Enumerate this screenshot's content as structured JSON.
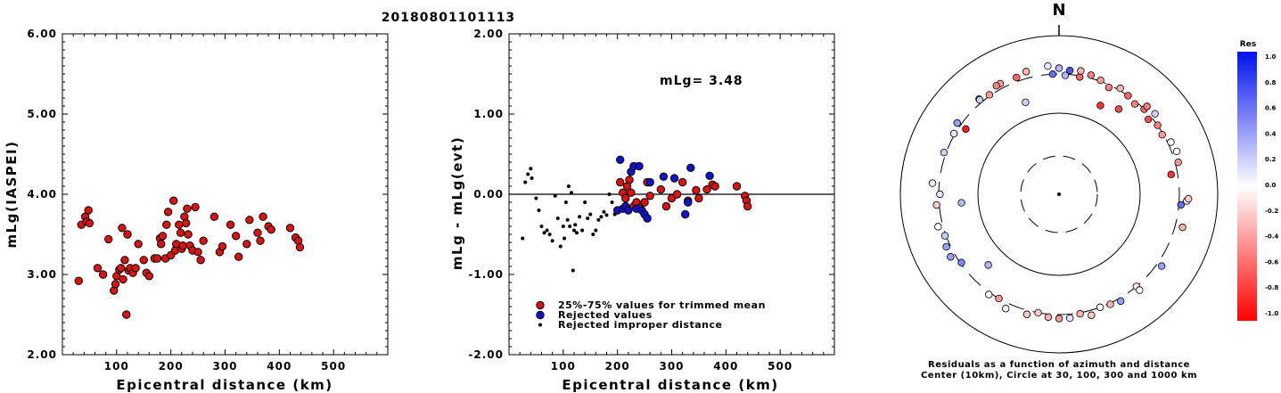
{
  "title": "20180801101113",
  "chart_data": [
    {
      "type": "scatter",
      "ylabel": "mLg(IASPEI)",
      "xlabel": "Epicentral distance (km)",
      "xlim": [
        0,
        600
      ],
      "ylim": [
        2.0,
        6.0
      ],
      "x_ticks": [
        "100",
        "200",
        "300",
        "400",
        "500"
      ],
      "y_ticks": [
        "2.00",
        "3.00",
        "4.00",
        "5.00",
        "6.00"
      ],
      "marker_color": "#dd1111",
      "points": [
        [
          30,
          2.92
        ],
        [
          35,
          3.62
        ],
        [
          42,
          3.72
        ],
        [
          45,
          3.66
        ],
        [
          48,
          3.8
        ],
        [
          50,
          3.64
        ],
        [
          65,
          3.08
        ],
        [
          75,
          3.0
        ],
        [
          85,
          3.44
        ],
        [
          95,
          2.8
        ],
        [
          98,
          2.88
        ],
        [
          100,
          2.98
        ],
        [
          105,
          3.06
        ],
        [
          108,
          3.08
        ],
        [
          110,
          3.58
        ],
        [
          112,
          2.94
        ],
        [
          115,
          3.18
        ],
        [
          118,
          2.5
        ],
        [
          120,
          3.5
        ],
        [
          122,
          3.05
        ],
        [
          125,
          3.08
        ],
        [
          130,
          3.02
        ],
        [
          135,
          3.08
        ],
        [
          140,
          3.38
        ],
        [
          150,
          3.18
        ],
        [
          155,
          3.02
        ],
        [
          160,
          2.98
        ],
        [
          170,
          3.2
        ],
        [
          175,
          3.2
        ],
        [
          180,
          3.45
        ],
        [
          182,
          3.38
        ],
        [
          185,
          3.48
        ],
        [
          190,
          3.2
        ],
        [
          192,
          3.62
        ],
        [
          195,
          3.78
        ],
        [
          200,
          3.24
        ],
        [
          205,
          3.92
        ],
        [
          208,
          3.3
        ],
        [
          210,
          3.38
        ],
        [
          215,
          3.62
        ],
        [
          218,
          3.52
        ],
        [
          220,
          3.32
        ],
        [
          222,
          3.36
        ],
        [
          225,
          3.72
        ],
        [
          228,
          3.64
        ],
        [
          230,
          3.82
        ],
        [
          232,
          3.5
        ],
        [
          235,
          3.36
        ],
        [
          240,
          3.3
        ],
        [
          245,
          3.84
        ],
        [
          250,
          3.28
        ],
        [
          255,
          3.18
        ],
        [
          260,
          3.42
        ],
        [
          280,
          3.72
        ],
        [
          290,
          3.28
        ],
        [
          295,
          3.35
        ],
        [
          310,
          3.62
        ],
        [
          320,
          3.48
        ],
        [
          325,
          3.22
        ],
        [
          340,
          3.38
        ],
        [
          345,
          3.68
        ],
        [
          360,
          3.52
        ],
        [
          365,
          3.42
        ],
        [
          370,
          3.72
        ],
        [
          380,
          3.6
        ],
        [
          385,
          3.56
        ],
        [
          420,
          3.58
        ],
        [
          430,
          3.46
        ],
        [
          435,
          3.42
        ],
        [
          438,
          3.34
        ]
      ]
    },
    {
      "type": "scatter",
      "ylabel": "mLg - mLg(evt)",
      "xlabel": "Epicentral distance (km)",
      "xlim": [
        0,
        600
      ],
      "ylim": [
        -2.0,
        2.0
      ],
      "x_ticks": [
        "100",
        "200",
        "300",
        "400",
        "500"
      ],
      "y_ticks": [
        "-2.00",
        "-1.00",
        "0.00",
        "1.00",
        "2.00"
      ],
      "annotation": "mLg= 3.48",
      "legend": [
        {
          "label": "25%-75% values for trimmed mean",
          "color": "#dd1111"
        },
        {
          "label": "Rejected values",
          "color": "#1111cc"
        },
        {
          "label": "Rejected improper distance",
          "color": "#000000"
        }
      ],
      "series": [
        {
          "name": "25%-75% values for trimmed mean",
          "color": "#dd1111",
          "points": [
            [
              205,
              0.15
            ],
            [
              210,
              0.02
            ],
            [
              215,
              -0.05
            ],
            [
              218,
              0.1
            ],
            [
              222,
              0.18
            ],
            [
              225,
              0.02
            ],
            [
              230,
              -0.15
            ],
            [
              235,
              -0.1
            ],
            [
              240,
              -0.17
            ],
            [
              250,
              -0.1
            ],
            [
              255,
              0.15
            ],
            [
              260,
              -0.02
            ],
            [
              280,
              0.06
            ],
            [
              290,
              -0.15
            ],
            [
              300,
              -0.05
            ],
            [
              310,
              0.0
            ],
            [
              320,
              0.15
            ],
            [
              330,
              -0.08
            ],
            [
              345,
              0.05
            ],
            [
              350,
              -0.05
            ],
            [
              365,
              0.06
            ],
            [
              375,
              0.12
            ],
            [
              380,
              0.1
            ],
            [
              420,
              0.1
            ],
            [
              435,
              -0.02
            ],
            [
              438,
              -0.08
            ],
            [
              440,
              -0.15
            ]
          ]
        },
        {
          "name": "Rejected values",
          "color": "#1111cc",
          "points": [
            [
              200,
              -0.2
            ],
            [
              205,
              0.43
            ],
            [
              210,
              -0.18
            ],
            [
              215,
              -0.15
            ],
            [
              220,
              -0.2
            ],
            [
              225,
              0.28
            ],
            [
              230,
              0.35
            ],
            [
              235,
              -0.18
            ],
            [
              240,
              0.35
            ],
            [
              245,
              -0.2
            ],
            [
              250,
              -0.25
            ],
            [
              255,
              -0.3
            ],
            [
              260,
              0.15
            ],
            [
              285,
              0.22
            ],
            [
              305,
              0.2
            ],
            [
              325,
              -0.25
            ],
            [
              330,
              -0.1
            ],
            [
              335,
              0.33
            ],
            [
              370,
              0.23
            ]
          ]
        },
        {
          "name": "Rejected improper distance",
          "color": "#000000",
          "points": [
            [
              25,
              -0.55
            ],
            [
              30,
              0.15
            ],
            [
              35,
              0.25
            ],
            [
              40,
              0.32
            ],
            [
              42,
              0.2
            ],
            [
              50,
              -0.05
            ],
            [
              55,
              -0.2
            ],
            [
              60,
              -0.4
            ],
            [
              65,
              -0.48
            ],
            [
              70,
              -0.45
            ],
            [
              75,
              -0.5
            ],
            [
              80,
              -0.58
            ],
            [
              85,
              -0.02
            ],
            [
              90,
              -0.3
            ],
            [
              95,
              -0.65
            ],
            [
              100,
              -0.4
            ],
            [
              102,
              -0.55
            ],
            [
              105,
              -0.1
            ],
            [
              108,
              -0.32
            ],
            [
              110,
              0.1
            ],
            [
              112,
              -0.4
            ],
            [
              115,
              0.02
            ],
            [
              118,
              -0.95
            ],
            [
              120,
              -0.45
            ],
            [
              122,
              -0.38
            ],
            [
              125,
              -0.48
            ],
            [
              130,
              -0.28
            ],
            [
              135,
              -0.45
            ],
            [
              140,
              -0.1
            ],
            [
              145,
              -0.3
            ],
            [
              150,
              -0.25
            ],
            [
              155,
              -0.5
            ],
            [
              160,
              -0.45
            ],
            [
              165,
              -0.32
            ],
            [
              170,
              -0.28
            ],
            [
              175,
              -0.22
            ],
            [
              180,
              -0.26
            ],
            [
              185,
              0.0
            ],
            [
              190,
              -0.1
            ],
            [
              195,
              -0.25
            ]
          ]
        }
      ]
    },
    {
      "type": "polar-scatter",
      "north_label": "N",
      "caption_line1": "Residuals as a function of azimuth and distance",
      "caption_line2": "Center (10km), Circle at 30, 100, 300 and 1000 km",
      "colorbar_title": "Res",
      "colorbar_ticks": [
        "1.0",
        "0.8",
        "0.6",
        "0.4",
        "0.2",
        "0.0",
        "-0.2",
        "-0.4",
        "-0.6",
        "-0.8",
        "-1.0"
      ],
      "stations": [
        {
          "az": -3,
          "dist": 300,
          "res": 0.6
        },
        {
          "az": 0,
          "dist": 360,
          "res": 0.3
        },
        {
          "az": -5,
          "dist": 390,
          "res": 0.1
        },
        {
          "az": -15,
          "dist": 370,
          "res": -0.3
        },
        {
          "az": -20,
          "dist": 340,
          "res": -0.6
        },
        {
          "az": -28,
          "dist": 350,
          "res": -0.4
        },
        {
          "az": -40,
          "dist": 340,
          "res": 0.5
        },
        {
          "az": -60,
          "dist": 310,
          "res": 0.2
        },
        {
          "az": -35,
          "dist": 310,
          "res": -0.4
        },
        {
          "az": -55,
          "dist": 250,
          "res": -0.9
        },
        {
          "az": -20,
          "dist": 160,
          "res": 0.2
        },
        {
          "az": 10,
          "dist": 290,
          "res": -0.6
        },
        {
          "az": 20,
          "dist": 310,
          "res": -0.4
        },
        {
          "az": 25,
          "dist": 280,
          "res": -0.5
        },
        {
          "az": 30,
          "dist": 320,
          "res": -0.3
        },
        {
          "az": 35,
          "dist": 300,
          "res": -0.6
        },
        {
          "az": 40,
          "dist": 280,
          "res": -0.5
        },
        {
          "az": 45,
          "dist": 300,
          "res": -0.6
        },
        {
          "az": 50,
          "dist": 270,
          "res": -0.7
        },
        {
          "az": 55,
          "dist": 300,
          "res": -0.5
        },
        {
          "az": 60,
          "dist": 290,
          "res": -0.4
        },
        {
          "az": 65,
          "dist": 330,
          "res": 0.0
        },
        {
          "az": 70,
          "dist": 350,
          "res": 0.0
        },
        {
          "az": 75,
          "dist": 330,
          "res": -0.4
        },
        {
          "az": 80,
          "dist": 250,
          "res": -0.8
        },
        {
          "az": 35,
          "dist": 190,
          "res": -0.7
        },
        {
          "az": 25,
          "dist": 160,
          "res": -0.8
        },
        {
          "az": 15,
          "dist": 330,
          "res": -0.5
        },
        {
          "az": 10,
          "dist": 350,
          "res": -0.3
        },
        {
          "az": 5,
          "dist": 340,
          "res": 0.7
        },
        {
          "az": 3,
          "dist": 290,
          "res": 0.3
        },
        {
          "az": 45,
          "dist": 340,
          "res": -0.5
        },
        {
          "az": 50,
          "dist": 350,
          "res": 0.2
        },
        {
          "az": 95,
          "dist": 320,
          "res": 0.6
        },
        {
          "az": 93,
          "dist": 380,
          "res": 0.0
        },
        {
          "az": 92,
          "dist": 400,
          "res": -0.2
        },
        {
          "az": 105,
          "dist": 380,
          "res": -0.3
        },
        {
          "az": 125,
          "dist": 350,
          "res": 0.4
        },
        {
          "az": 140,
          "dist": 300,
          "res": -0.1
        },
        {
          "az": 140,
          "dist": 350,
          "res": 0.0
        },
        {
          "az": 150,
          "dist": 330,
          "res": 0.4
        },
        {
          "az": 155,
          "dist": 310,
          "res": -0.3
        },
        {
          "az": 160,
          "dist": 300,
          "res": 0.0
        },
        {
          "az": 165,
          "dist": 350,
          "res": -0.2
        },
        {
          "az": 170,
          "dist": 310,
          "res": -0.3
        },
        {
          "az": 175,
          "dist": 340,
          "res": 0.1
        },
        {
          "az": 180,
          "dist": 340,
          "res": -0.4
        },
        {
          "az": 185,
          "dist": 330,
          "res": -0.3
        },
        {
          "az": 190,
          "dist": 300,
          "res": -0.2
        },
        {
          "az": 195,
          "dist": 340,
          "res": -0.2
        },
        {
          "az": 205,
          "dist": 360,
          "res": 0.0
        },
        {
          "az": 210,
          "dist": 300,
          "res": -0.4
        },
        {
          "az": 215,
          "dist": 320,
          "res": 0.0
        },
        {
          "az": 235,
          "dist": 290,
          "res": 0.5
        },
        {
          "az": 240,
          "dist": 350,
          "res": 0.4
        },
        {
          "az": 245,
          "dist": 340,
          "res": 0.4
        },
        {
          "az": 250,
          "dist": 310,
          "res": 0.2
        },
        {
          "az": 255,
          "dist": 350,
          "res": 0.0
        },
        {
          "az": 270,
          "dist": 290,
          "res": 0.1
        },
        {
          "az": 265,
          "dist": 325,
          "res": -0.2
        },
        {
          "az": 275,
          "dist": 370,
          "res": -0.1
        },
        {
          "az": 225,
          "dist": 170,
          "res": 0.3
        },
        {
          "az": 265,
          "dist": 160,
          "res": 0.3
        },
        {
          "az": 290,
          "dist": 320,
          "res": 0.2
        },
        {
          "az": 300,
          "dist": 310,
          "res": 0.1
        },
        {
          "az": 305,
          "dist": 340,
          "res": 0.4
        },
        {
          "az": 320,
          "dist": 330,
          "res": 0.2
        },
        {
          "az": 330,
          "dist": 350,
          "res": -0.5
        }
      ]
    }
  ]
}
